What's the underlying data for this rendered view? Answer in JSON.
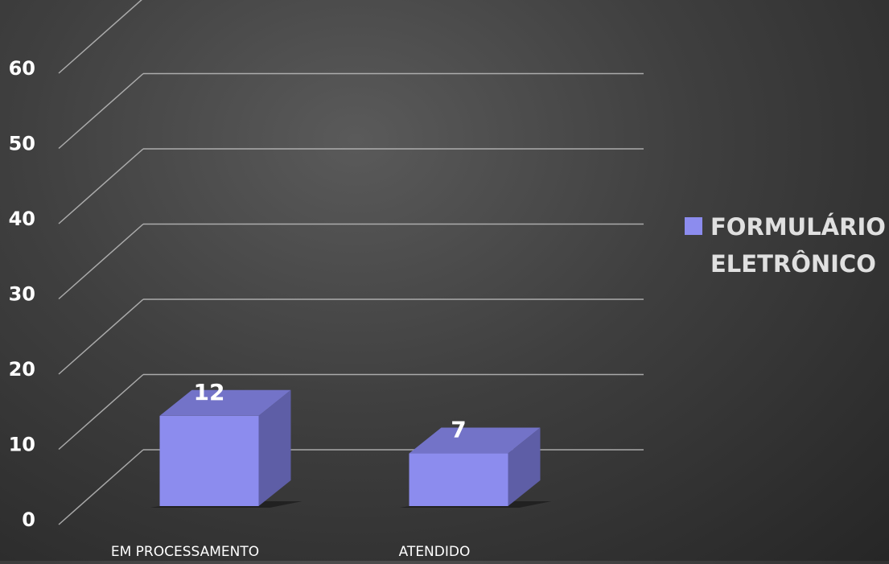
{
  "chart_data": {
    "type": "bar",
    "title": "",
    "xlabel": "",
    "ylabel": "",
    "categories": [
      "EM PROCESSAMENTO",
      "ATENDIDO"
    ],
    "series": [
      {
        "name": "FORMULÁRIO ELETRÔNICO",
        "values": [
          12,
          7
        ],
        "color": "#8c8cee"
      }
    ],
    "ylim": [
      0,
      60
    ],
    "yticks": [
      0,
      10,
      20,
      30,
      40,
      50,
      60
    ],
    "yticks_labels": [
      "0",
      "10",
      "20",
      "30",
      "40",
      "50",
      "60"
    ],
    "data_labels": [
      "12",
      "7"
    ],
    "legend": {
      "position": "right",
      "lines": [
        "FORMULÁRIO",
        "ELETRÔNICO"
      ],
      "swatch_color": "#8c8cee"
    },
    "grid": true,
    "style": "3d-column",
    "colors": {
      "bar_front": "#8c8cee",
      "bar_top": "#7373c8",
      "bar_side": "#5e5ea6",
      "grid": "#bdbdbd",
      "text": "#ffffff"
    }
  }
}
